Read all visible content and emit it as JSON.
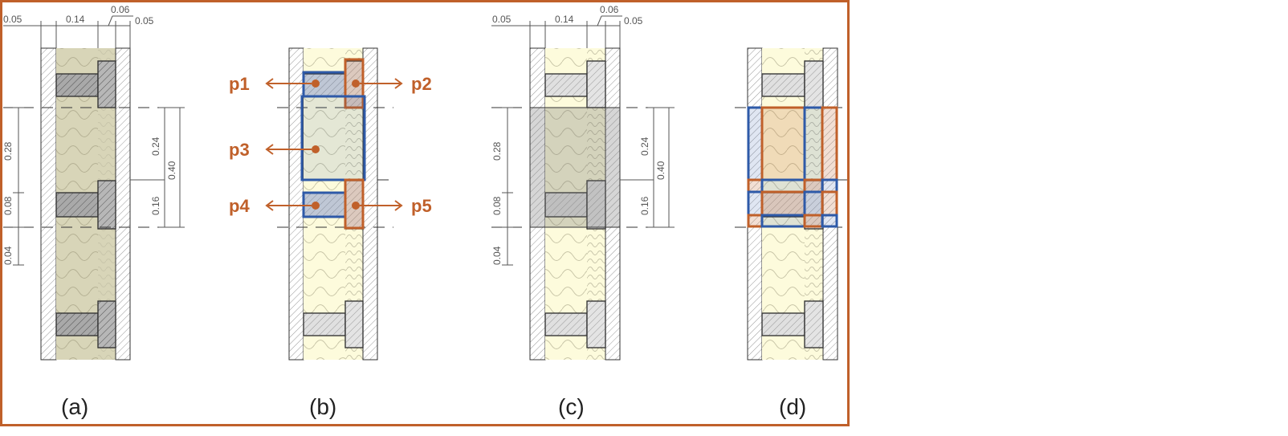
{
  "colors": {
    "frame": "#c0602a",
    "accent": "#c0602a",
    "blue": "#2e5aa8",
    "insulation": "#fdfbdc",
    "insulation_dark": "#d6d3b4",
    "studs_dark": "#a9a9a9",
    "studs_light": "#e0e0e0"
  },
  "panels": {
    "a": {
      "caption": "(a)"
    },
    "b": {
      "caption": "(b)"
    },
    "c": {
      "caption": "(c)"
    },
    "d": {
      "caption": "(d)"
    }
  },
  "dimensions": {
    "top": [
      "0.05",
      "0.14",
      "0.06",
      "0.05"
    ],
    "left": [
      "0.28",
      "0.08",
      "0.04"
    ],
    "right": [
      "0.24",
      "0.16",
      "0.40"
    ]
  },
  "markers": {
    "p1": "p1",
    "p2": "p2",
    "p3": "p3",
    "p4": "p4",
    "p5": "p5"
  }
}
